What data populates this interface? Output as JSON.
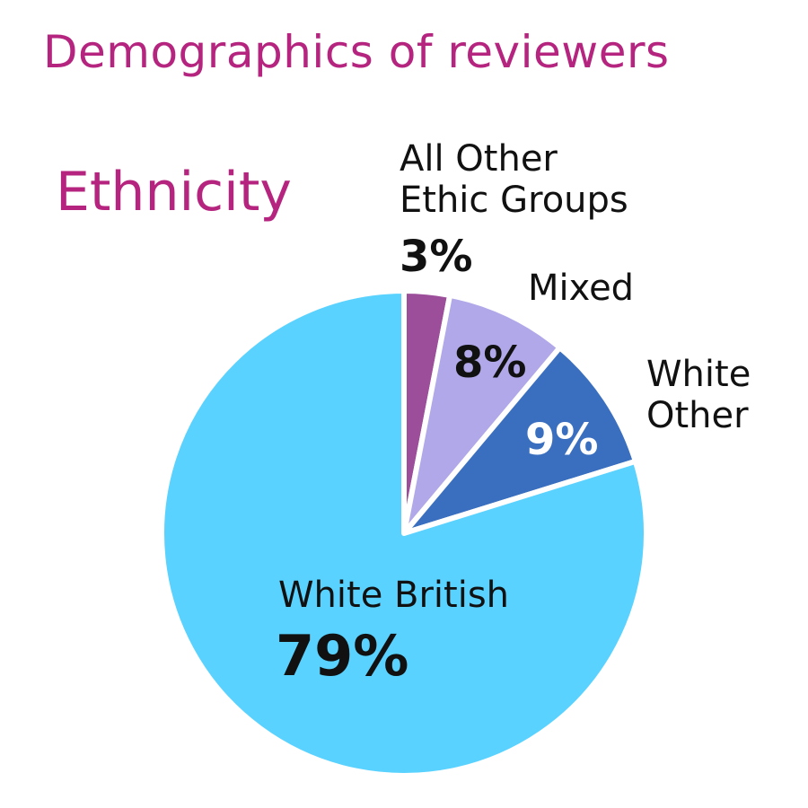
{
  "title": "Demographics of reviewers",
  "subtitle": "Ethnicity",
  "colors": {
    "title": "#b5257f",
    "label": "#111111",
    "slice_border": "#ffffff"
  },
  "chart_data": {
    "type": "pie",
    "title": "Ethnicity",
    "start_angle_deg": 0,
    "direction": "clockwise",
    "slices": [
      {
        "label_lines": [
          "All Other",
          "Ethic Groups"
        ],
        "value": 3,
        "display": "3%",
        "color": "#9c4e9a",
        "value_color": "#111111"
      },
      {
        "label_lines": [
          "Mixed"
        ],
        "value": 8,
        "display": "8%",
        "color": "#b0a8e8",
        "value_color": "#111111"
      },
      {
        "label_lines": [
          "White",
          "Other"
        ],
        "value": 9,
        "display": "9%",
        "color": "#3a6fc0",
        "value_color": "#ffffff"
      },
      {
        "label_lines": [
          "White British"
        ],
        "value": 79,
        "display": "79%",
        "color": "#59d2ff",
        "value_color": "#111111"
      }
    ]
  }
}
